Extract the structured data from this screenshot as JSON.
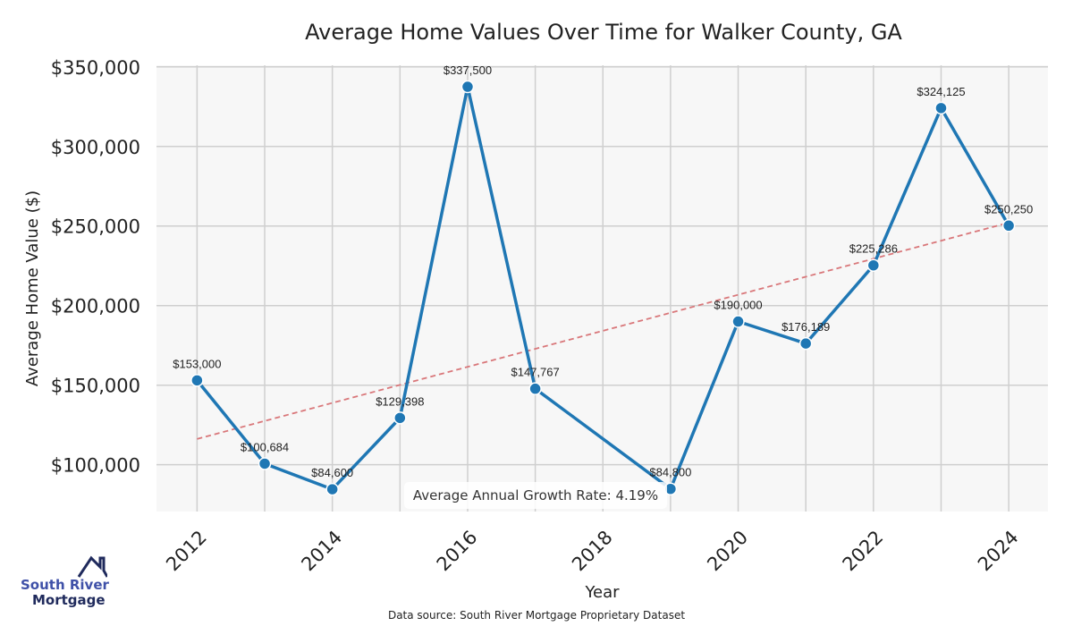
{
  "chart_data": {
    "type": "line",
    "title": "Average Home Values Over Time for Walker County, GA",
    "xlabel": "Year",
    "ylabel": "Average Home Value ($)",
    "x": [
      2012,
      2013,
      2014,
      2015,
      2016,
      2017,
      2018,
      2019,
      2020,
      2021,
      2022,
      2023,
      2024
    ],
    "series": [
      {
        "name": "Average Home Value",
        "color": "#1f77b4",
        "x": [
          2012,
          2013,
          2014,
          2015,
          2016,
          2017,
          2019,
          2020,
          2021,
          2022,
          2023,
          2024
        ],
        "values": [
          153000,
          100684,
          84600,
          129398,
          337500,
          147767,
          84800,
          190000,
          176189,
          225286,
          324125,
          250250
        ],
        "labels": [
          "$153,000",
          "$100,684",
          "$84,600",
          "$129,398",
          "$337,500",
          "$147,767",
          "$84,800",
          "$190,000",
          "$176,189",
          "$225,286",
          "$324,125",
          "$250,250"
        ]
      }
    ],
    "trendline": {
      "color": "#d9777a",
      "x": [
        2012,
        2024
      ],
      "values": [
        116200,
        252100
      ],
      "style": "dashed"
    },
    "xticks": [
      2012,
      2014,
      2016,
      2018,
      2020,
      2022,
      2024
    ],
    "xtick_labels": [
      "2012",
      "2014",
      "2016",
      "2018",
      "2020",
      "2022",
      "2024"
    ],
    "yticks": [
      100000,
      150000,
      200000,
      250000,
      300000,
      350000
    ],
    "ytick_labels": [
      "$100,000",
      "$150,000",
      "$200,000",
      "$250,000",
      "$300,000",
      "$350,000"
    ],
    "xlim": [
      2011.4,
      2024.58
    ],
    "ylim": [
      70600,
      351000
    ],
    "grid": true,
    "annotation": "Average Annual Growth Rate: 4.19%"
  },
  "source": "Data source: South River Mortgage Proprietary Dataset",
  "logo": {
    "line1": "South River",
    "line2": "Mortgage"
  }
}
